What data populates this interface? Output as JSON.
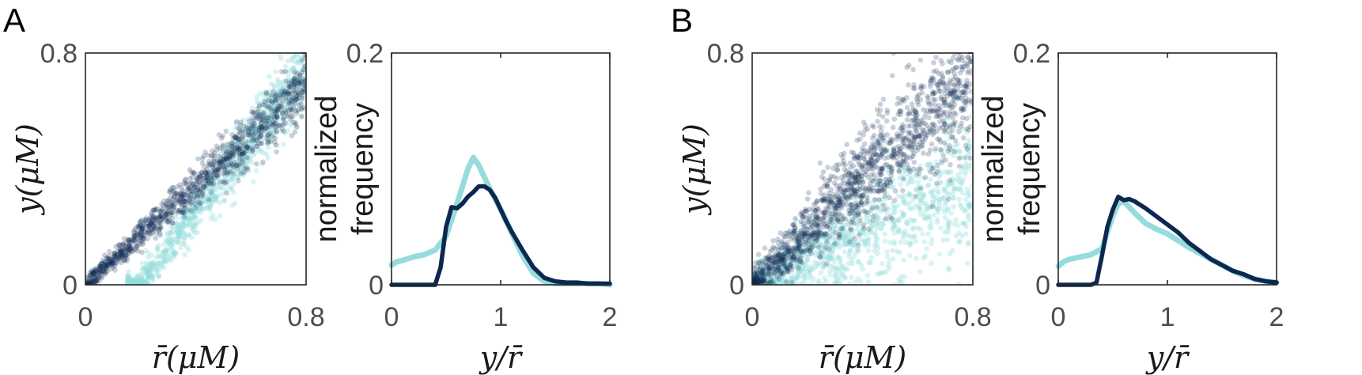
{
  "colors": {
    "dark": "#0c2850",
    "light": "#96dcdc"
  },
  "panels": [
    {
      "label": "A",
      "scatter_id": "A",
      "hist_id": "A"
    },
    {
      "label": "B",
      "scatter_id": "B",
      "hist_id": "B"
    }
  ],
  "scatter_axes": {
    "xlabel": "r̄(μM)",
    "ylabel": "y(μM)",
    "xticks": [
      "0",
      "0.8"
    ],
    "yticks": [
      "0",
      "0.8"
    ],
    "xlim": [
      0,
      0.8
    ],
    "ylim": [
      0,
      0.8
    ]
  },
  "hist_axes": {
    "xlabel": "y/r̄",
    "ylabel_lines": [
      "normalized",
      "frequency"
    ],
    "xticks": [
      "0",
      "1",
      "2"
    ],
    "yticks": [
      "0",
      "0.2"
    ],
    "xlim": [
      0,
      2
    ],
    "ylim": [
      0,
      0.2
    ]
  },
  "chart_data": [
    {
      "panel": "A",
      "type": "scatter",
      "xlim": [
        0,
        0.8
      ],
      "ylim": [
        0,
        0.8
      ],
      "xlabel": "r̄(μM)",
      "ylabel": "y(μM)",
      "series": [
        {
          "color": "#96dcdc",
          "x_range": [
            0.15,
            0.8
          ],
          "slope": 1.25,
          "x_offset": 0.2,
          "spread": 0.06,
          "n": 900
        },
        {
          "color": "#0c2850",
          "x_range": [
            0,
            0.8
          ],
          "slope": 0.85,
          "x_offset": 0,
          "spread": 0.05,
          "n": 1100
        }
      ]
    },
    {
      "panel": "A",
      "type": "line",
      "xlim": [
        0,
        2
      ],
      "ylim": [
        0,
        0.2
      ],
      "xlabel": "y/r̄",
      "ylabel": "normalized frequency",
      "series": [
        {
          "color": "#96dcdc",
          "x": [
            0,
            0.05,
            0.1,
            0.2,
            0.3,
            0.4,
            0.5,
            0.6,
            0.7,
            0.75,
            0.8,
            0.9,
            1.0,
            1.1,
            1.2,
            1.3,
            1.4,
            1.5,
            1.6,
            1.7,
            1.8,
            1.9,
            2.0
          ],
          "y": [
            0.017,
            0.02,
            0.021,
            0.024,
            0.026,
            0.03,
            0.042,
            0.07,
            0.1,
            0.11,
            0.103,
            0.083,
            0.065,
            0.045,
            0.025,
            0.01,
            0.003,
            0.001,
            0.001,
            0.001,
            0.001,
            0.001,
            0
          ]
        },
        {
          "color": "#0c2850",
          "x": [
            0,
            0.2,
            0.4,
            0.45,
            0.5,
            0.55,
            0.6,
            0.65,
            0.7,
            0.75,
            0.8,
            0.85,
            0.9,
            0.95,
            1.0,
            1.05,
            1.1,
            1.2,
            1.3,
            1.4,
            1.5,
            1.6,
            1.7,
            1.8,
            1.9,
            2.0
          ],
          "y": [
            0,
            0,
            0,
            0.015,
            0.05,
            0.067,
            0.066,
            0.07,
            0.076,
            0.08,
            0.085,
            0.085,
            0.082,
            0.075,
            0.065,
            0.055,
            0.046,
            0.03,
            0.015,
            0.006,
            0.003,
            0.002,
            0.002,
            0.001,
            0.001,
            0.001
          ]
        }
      ]
    },
    {
      "panel": "B",
      "type": "scatter",
      "xlim": [
        0,
        0.8
      ],
      "ylim": [
        0,
        0.8
      ],
      "xlabel": "r̄(μM)",
      "ylabel": "y(μM)",
      "series": [
        {
          "color": "#96dcdc",
          "x_range": [
            0,
            0.8
          ],
          "slope": 0.45,
          "x_offset": 0,
          "spread": 0.12,
          "n": 1000
        },
        {
          "color": "#0c2850",
          "x_range": [
            0,
            0.8
          ],
          "slope": 0.9,
          "x_offset": 0,
          "spread": 0.11,
          "n": 1400
        }
      ]
    },
    {
      "panel": "B",
      "type": "line",
      "xlim": [
        0,
        2
      ],
      "ylim": [
        0,
        0.2
      ],
      "xlabel": "y/r̄",
      "ylabel": "normalized frequency",
      "series": [
        {
          "color": "#96dcdc",
          "x": [
            0,
            0.05,
            0.1,
            0.2,
            0.3,
            0.4,
            0.5,
            0.55,
            0.6,
            0.7,
            0.8,
            0.9,
            1.0,
            1.1,
            1.2,
            1.3,
            1.4,
            1.5,
            1.6,
            1.7,
            1.8,
            1.9,
            2.0
          ],
          "y": [
            0.016,
            0.02,
            0.022,
            0.024,
            0.026,
            0.031,
            0.06,
            0.07,
            0.072,
            0.062,
            0.053,
            0.048,
            0.044,
            0.038,
            0.032,
            0.027,
            0.022,
            0.017,
            0.012,
            0.008,
            0.005,
            0.003,
            0.002
          ]
        },
        {
          "color": "#0c2850",
          "x": [
            0,
            0.2,
            0.3,
            0.35,
            0.4,
            0.45,
            0.5,
            0.55,
            0.6,
            0.65,
            0.7,
            0.8,
            0.9,
            1.0,
            1.1,
            1.2,
            1.3,
            1.4,
            1.5,
            1.6,
            1.7,
            1.8,
            1.9,
            2.0
          ],
          "y": [
            0,
            0,
            0,
            0.002,
            0.025,
            0.05,
            0.065,
            0.076,
            0.073,
            0.074,
            0.072,
            0.066,
            0.059,
            0.052,
            0.045,
            0.036,
            0.029,
            0.022,
            0.017,
            0.012,
            0.009,
            0.005,
            0.003,
            0.002
          ]
        }
      ]
    }
  ]
}
